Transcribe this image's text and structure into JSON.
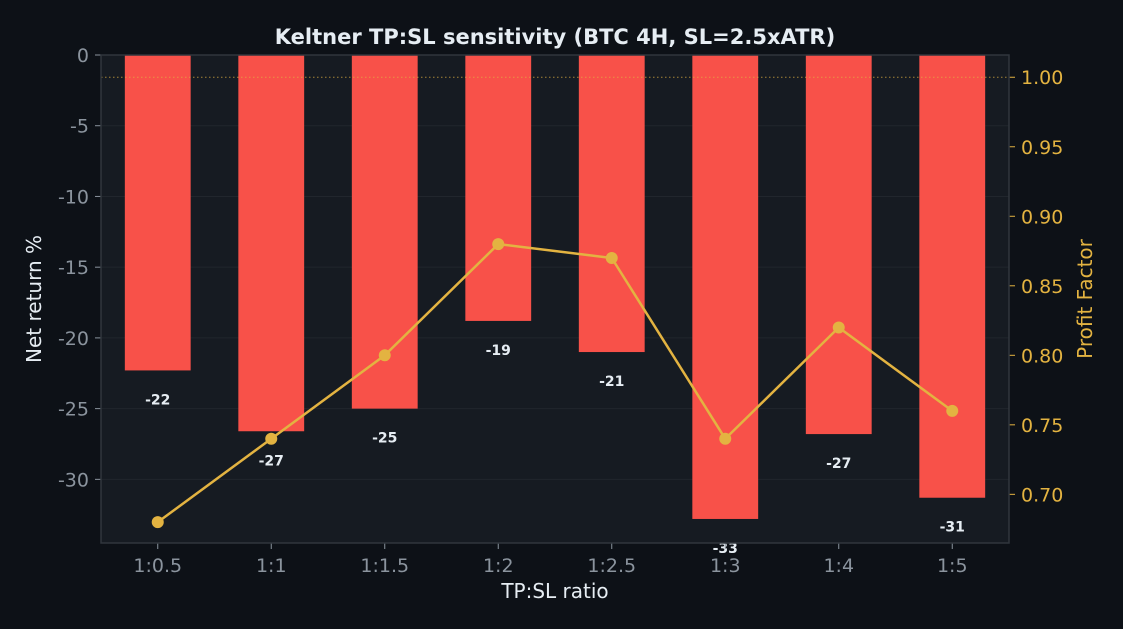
{
  "colors": {
    "background": "#0d1117",
    "plot_background": "#161b22",
    "bar": "#f85149",
    "line": "#e3b341",
    "text": "#e6edf3",
    "tick": "#8b949e",
    "grid": "#21262d",
    "reference_line": "#e3b341"
  },
  "chart_data": {
    "type": "bar",
    "title": "Keltner TP:SL sensitivity (BTC 4H, SL=2.5xATR)",
    "xlabel": "TP:SL ratio",
    "ylabel": "Net return %",
    "y2label": "Profit Factor",
    "categories": [
      "1:0.5",
      "1:1",
      "1:1.5",
      "1:2",
      "1:2.5",
      "1:3",
      "1:4",
      "1:5"
    ],
    "series": [
      {
        "axis": "left",
        "kind": "bar",
        "values": [
          -22.3,
          -26.6,
          -25.0,
          -18.8,
          -21.0,
          -32.8,
          -26.8,
          -31.3
        ],
        "labels": [
          "-22",
          "-27",
          "-25",
          "-19",
          "-21",
          "-33",
          "-27",
          "-31"
        ]
      },
      {
        "axis": "right",
        "kind": "line",
        "values": [
          0.68,
          0.74,
          0.8,
          0.88,
          0.87,
          0.74,
          0.82,
          0.76
        ]
      }
    ],
    "ylim": [
      -34.5,
      0
    ],
    "y2lim": [
      0.665,
      1.016
    ],
    "yticks": [
      0,
      -5,
      -10,
      -15,
      -20,
      -25,
      -30
    ],
    "ytick_labels": [
      "0",
      "-5",
      "-10",
      "-15",
      "-20",
      "-25",
      "-30"
    ],
    "y2ticks": [
      0.7,
      0.75,
      0.8,
      0.85,
      0.9,
      0.95,
      1.0
    ],
    "y2tick_labels": [
      "0.70",
      "0.75",
      "0.80",
      "0.85",
      "0.90",
      "0.95",
      "1.00"
    ],
    "reference_line_y2": 1.0,
    "grid": true,
    "legend": "none"
  }
}
